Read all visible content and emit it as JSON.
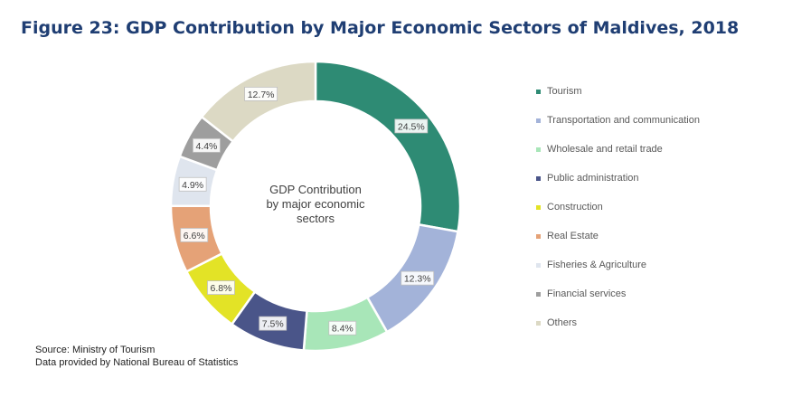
{
  "figure": {
    "title": "Figure 23: GDP Contribution by Major Economic Sectors of Maldives, 2018",
    "center_label": [
      "GDP Contribution",
      "by major economic",
      "sectors"
    ],
    "source_lines": [
      "Source: Ministry of Tourism",
      "Data provided by National Bureau of Statistics"
    ]
  },
  "chart_data": {
    "type": "pie",
    "donut": true,
    "title": "Figure 23: GDP Contribution by Major Economic Sectors of Maldives, 2018",
    "legend_position": "right",
    "slices": [
      {
        "label": "Tourism",
        "value": 24.5,
        "display": "24.5%",
        "color": "#2e8b74"
      },
      {
        "label": "Transportation and communication",
        "value": 12.3,
        "display": "12.3%",
        "color": "#a3b3d9"
      },
      {
        "label": "Wholesale and retail trade",
        "value": 8.4,
        "display": "8.4%",
        "color": "#a8e6b8"
      },
      {
        "label": "Public administration",
        "value": 7.5,
        "display": "7.5%",
        "color": "#4a5589"
      },
      {
        "label": "Construction",
        "value": 6.8,
        "display": "6.8%",
        "color": "#e3e326"
      },
      {
        "label": "Real Estate",
        "value": 6.6,
        "display": "6.6%",
        "color": "#e5a277"
      },
      {
        "label": "Fisheries & Agriculture",
        "value": 4.9,
        "display": "4.9%",
        "color": "#dfe5ee"
      },
      {
        "label": "Financial services",
        "value": 4.4,
        "display": "4.4%",
        "color": "#9e9e9e"
      },
      {
        "label": "Others",
        "value": 12.7,
        "display": "12.7%",
        "color": "#dcd9c4"
      }
    ]
  }
}
